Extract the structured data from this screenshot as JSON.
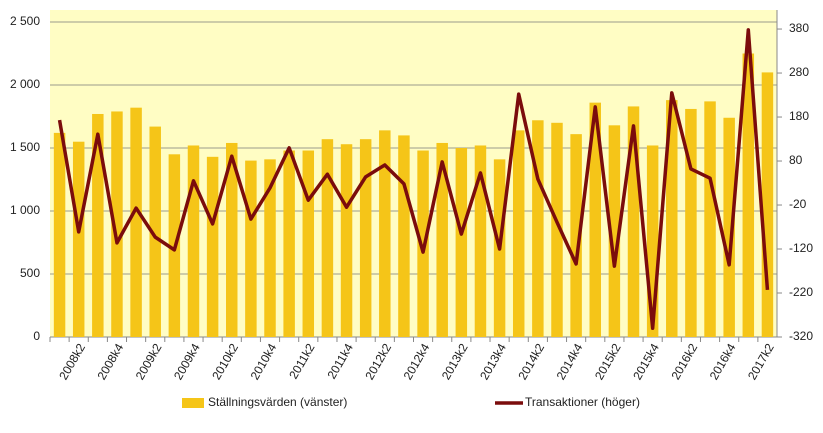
{
  "chart_data": {
    "type": "bar-line",
    "categories": [
      null,
      "2008k2",
      null,
      "2008k4",
      null,
      "2009k2",
      null,
      "2009k4",
      null,
      "2010k2",
      null,
      "2010k4",
      null,
      "2011k2",
      null,
      "2011k4",
      null,
      "2012k2",
      null,
      "2012k4",
      null,
      "2013k2",
      null,
      "2013k4",
      null,
      "2014k2",
      null,
      "2014k4",
      null,
      "2015k2",
      null,
      "2015k4",
      null,
      "2016k2",
      null,
      "2016k4",
      null,
      "2017k2"
    ],
    "series": [
      {
        "name": "Ställningsvärden (vänster)",
        "type": "bar",
        "color": "#f5c518",
        "values": [
          1620,
          1550,
          1770,
          1790,
          1820,
          1670,
          1450,
          1520,
          1430,
          1540,
          1400,
          1410,
          1480,
          1480,
          1570,
          1530,
          1570,
          1640,
          1600,
          1480,
          1540,
          1500,
          1520,
          1410,
          1640,
          1720,
          1700,
          1610,
          1860,
          1680,
          1830,
          1520,
          1880,
          1810,
          1870,
          1740,
          2250,
          2100
        ]
      },
      {
        "name": "Transaktioner (höger)",
        "type": "line",
        "axis": "y2",
        "color": "#7b0c0c",
        "values": [
          173,
          -81,
          141,
          -106,
          -27,
          -93,
          -122,
          35,
          -63,
          91,
          -52,
          19,
          110,
          -9,
          50,
          -25,
          44,
          71,
          28,
          -127,
          78,
          -86,
          53,
          -120,
          232,
          39,
          -59,
          -154,
          203,
          -159,
          160,
          -300,
          235,
          62,
          41,
          -156,
          378,
          -213
        ]
      }
    ],
    "ylim": [
      0,
      2500
    ],
    "yticks": [
      0,
      {
        "value": 500,
        "label": "500"
      },
      {
        "value": 1000,
        "label": "1 000"
      },
      {
        "value": 1500,
        "label": "1 500"
      },
      {
        "value": 2000,
        "label": "2 000"
      },
      {
        "value": 2500,
        "label": "2 500"
      }
    ],
    "y2lim": [
      -320,
      396
    ],
    "y2ticks": [
      -320,
      -220,
      -120,
      -20,
      80,
      180,
      280,
      380
    ],
    "grid": true,
    "legend": "bottom"
  }
}
